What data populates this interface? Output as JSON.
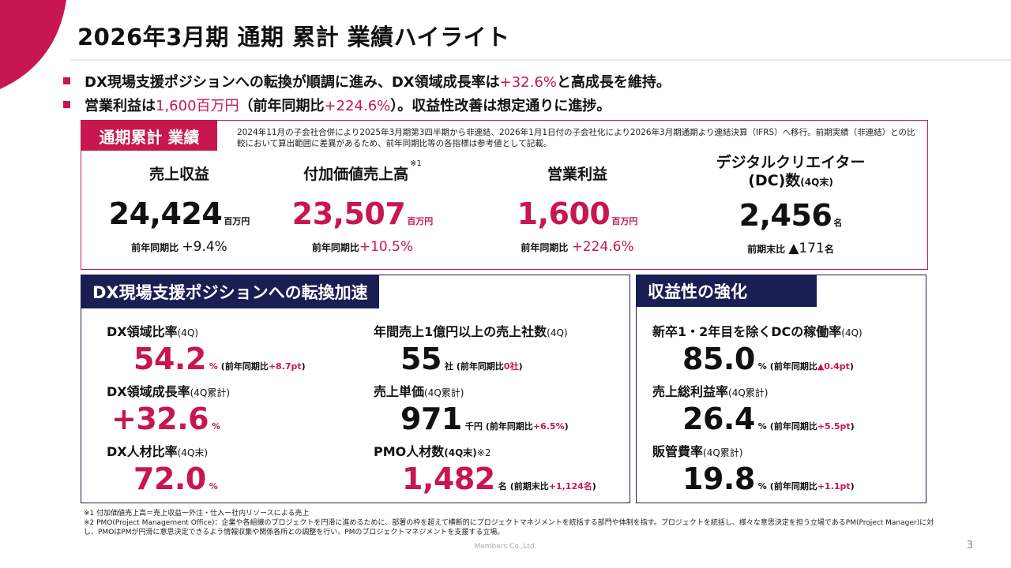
{
  "title": "2026年3月期 通期 累計 業績ハイライト",
  "colors": {
    "accent": "#c8174e",
    "navy": "#1b1e53"
  },
  "bullets": [
    {
      "a": "DX現場支援ポジションへの転換が順調に進み、DX領域成長率は",
      "hl": "+32.6%",
      "b": "と高成長を維持。"
    },
    {
      "a": "営業利益は",
      "hl": "1,600百万円",
      "b": "（前年同期比",
      "hl2": "+224.6%",
      "c": "）。収益性改善は想定通りに進捗。"
    }
  ],
  "annual": {
    "label": "通期累計 業績",
    "note": "2024年11月の子会社合併により2025年3月期第3四半期から非連結、2026年1月1日付の子会社化により2026年3月期通期より連結決算（IFRS）へ移行。前期実績（非連結）との比較において算出範囲に差異があるため、前年同期比等の各指標は参考値として記載。",
    "kpis": [
      {
        "title": "売上収益",
        "value": "24,424",
        "unit": "百万円",
        "sub_label": "前年同期比",
        "sub_value": "+9.4%"
      },
      {
        "title": "付加価値売上高",
        "note_mark": "※1",
        "value": "23,507",
        "unit": "百万円",
        "sub_label": "前年同期比",
        "sub_value": "+10.5%"
      },
      {
        "title": "営業利益",
        "value": "1,600",
        "unit": "百万円",
        "sub_label": "前年同期比",
        "sub_value": "+224.6%"
      },
      {
        "title_line1": "デジタルクリエイター",
        "title_line2": "(DC)数",
        "title_suffix": "(4Q末)",
        "value": "2,456",
        "unit": "名",
        "sub_label": "前期末比",
        "sub_value": "▲171",
        "sub_unit": "名"
      }
    ]
  },
  "dx": {
    "label": "DX現場支援ポジションへの転換加速",
    "left": [
      {
        "title": "DX領域比率",
        "period": "(4Q)",
        "value": "54.2",
        "unit": "%",
        "cmp_a": "(前年同期比",
        "cmp_b": "+8.7pt",
        "cmp_c": ")"
      },
      {
        "title": "DX領域成長率",
        "period": "(4Q累計)",
        "value": "+32.6",
        "unit": "%"
      },
      {
        "title": "DX人材比率",
        "period": "(4Q末)",
        "value": "72.0",
        "unit": "%"
      }
    ],
    "right": [
      {
        "title": "年間売上1億円以上の売上社数",
        "period": "(4Q)",
        "value": "55",
        "unit": "社",
        "cmp_a": "(前年同期比",
        "cmp_b": "0社",
        "cmp_c": ")"
      },
      {
        "title": "売上単価",
        "period": "(4Q累計)",
        "value": "971",
        "unit": "千円",
        "cmp_a": "(前年同期比",
        "cmp_b": "+6.5%",
        "cmp_c": ")"
      },
      {
        "title": "PMO人材数",
        "period": "(4Q末)",
        "note_mark": "※2",
        "value": "1,482",
        "unit": "名",
        "cmp_a": "(前期末比",
        "cmp_b": "+1,124名",
        "cmp_c": ")"
      }
    ]
  },
  "profit": {
    "label": "収益性の強化",
    "items": [
      {
        "title": "新卒1・2年目を除くDCの稼働率",
        "period": "(4Q)",
        "value": "85.0",
        "unit": "%",
        "cmp_a": "(前年同期比",
        "cmp_b": "▲0.4pt",
        "cmp_c": ")"
      },
      {
        "title": "売上総利益率",
        "period": "(4Q累計)",
        "value": "26.4",
        "unit": "%",
        "cmp_a": "(前年同期比",
        "cmp_b": "+5.5pt",
        "cmp_c": ")"
      },
      {
        "title": "販管費率",
        "period": "(4Q累計)",
        "value": "19.8",
        "unit": "%",
        "cmp_a": "(前年同期比",
        "cmp_b": "+1.1pt",
        "cmp_c": ")"
      }
    ]
  },
  "footnotes": [
    "※1 付加価値売上高＝売上収益ー外注・仕入ー社内リソースによる売上",
    "※2 PMO(Project Management Office)：企業や各組織のプロジェクトを円滑に進めるために、部署の枠を超えて横断的にプロジェクトマネジメントを統括する部門や体制を指す。プロジェクトを統括し、様々な意思決定を担う立場であるPM(Project Manager)に対し、PMOはPMが円滑に意思決定できるよう情報収集や関係各所との調整を行い、PMのプロジェクトマネジメントを支援する立場。"
  ],
  "footer": {
    "company": "Members Co.,Ltd.",
    "page": "3"
  }
}
